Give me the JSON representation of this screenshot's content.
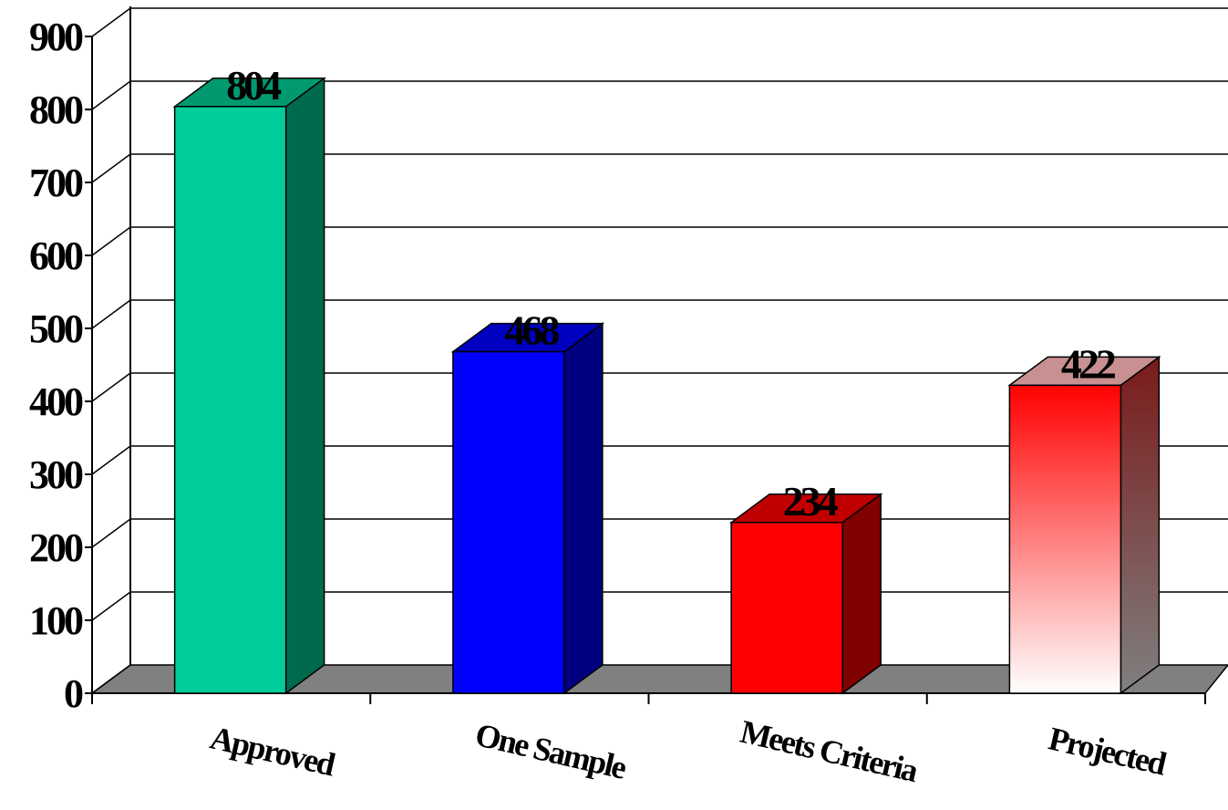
{
  "chart_data": {
    "type": "bar",
    "style": "3d-column",
    "categories": [
      "Approved",
      "One Sample",
      "Meets Criteria",
      "Projected"
    ],
    "values": [
      804,
      468,
      234,
      422
    ],
    "data_labels": [
      "804",
      "468",
      "234",
      "422"
    ],
    "ylim": [
      0,
      900
    ],
    "yticks": [
      0,
      100,
      200,
      300,
      400,
      500,
      600,
      700,
      800,
      900
    ],
    "ytick_labels": [
      "0",
      "100",
      "200",
      "300",
      "400",
      "500",
      "600",
      "700",
      "800",
      "900"
    ],
    "grid": true,
    "legend": "none",
    "title": "",
    "xlabel": "",
    "ylabel": "",
    "bar_colors": [
      {
        "front": "#00cc99",
        "side": "#006a4e",
        "top": "#009970"
      },
      {
        "front": "#0000ff",
        "side": "#000080",
        "top": "#0000c0"
      },
      {
        "front": "#ff0000",
        "side": "#800000",
        "top": "#c00000"
      },
      {
        "front_gradient": [
          "#ffffff",
          "#ff0000"
        ],
        "side_gradient": [
          "#808080",
          "#7a1a1a"
        ],
        "top": "#c89090"
      }
    ],
    "floor_color": "#808080",
    "gridline_color": "#000000"
  }
}
